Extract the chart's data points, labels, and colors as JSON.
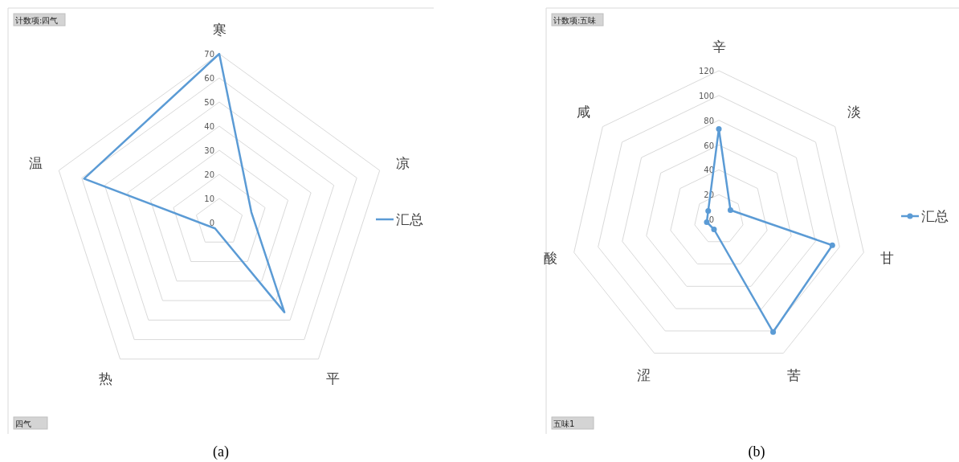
{
  "chart_data": [
    {
      "type": "radar",
      "categories": [
        "寒",
        "凉",
        "平",
        "热",
        "温"
      ],
      "ylim": [
        0,
        70
      ],
      "yticks": [
        0,
        10,
        20,
        30,
        40,
        50,
        60,
        70
      ],
      "grid": true,
      "legend": "right",
      "marker": "none",
      "line_style": "solid",
      "series": [
        {
          "name": "汇总",
          "color": "#5b9bd5",
          "values": [
            70,
            14,
            46,
            3,
            59
          ]
        }
      ],
      "annotations": [
        "计数项:四气",
        "四气",
        "(a)"
      ]
    },
    {
      "type": "radar",
      "categories": [
        "辛",
        "淡",
        "甘",
        "苦",
        "涩",
        "酸",
        "咸"
      ],
      "ylim": [
        0,
        120
      ],
      "yticks": [
        0,
        20,
        40,
        60,
        80,
        100,
        120
      ],
      "grid": true,
      "legend": "right",
      "marker": "circle",
      "line_style": "solid",
      "series": [
        {
          "name": "汇总",
          "color": "#5b9bd5",
          "values": [
            73,
            12,
            94,
            101,
            9,
            10,
            11
          ]
        }
      ],
      "annotations": [
        "计数项:五味",
        "五味1",
        "(b)"
      ]
    }
  ]
}
